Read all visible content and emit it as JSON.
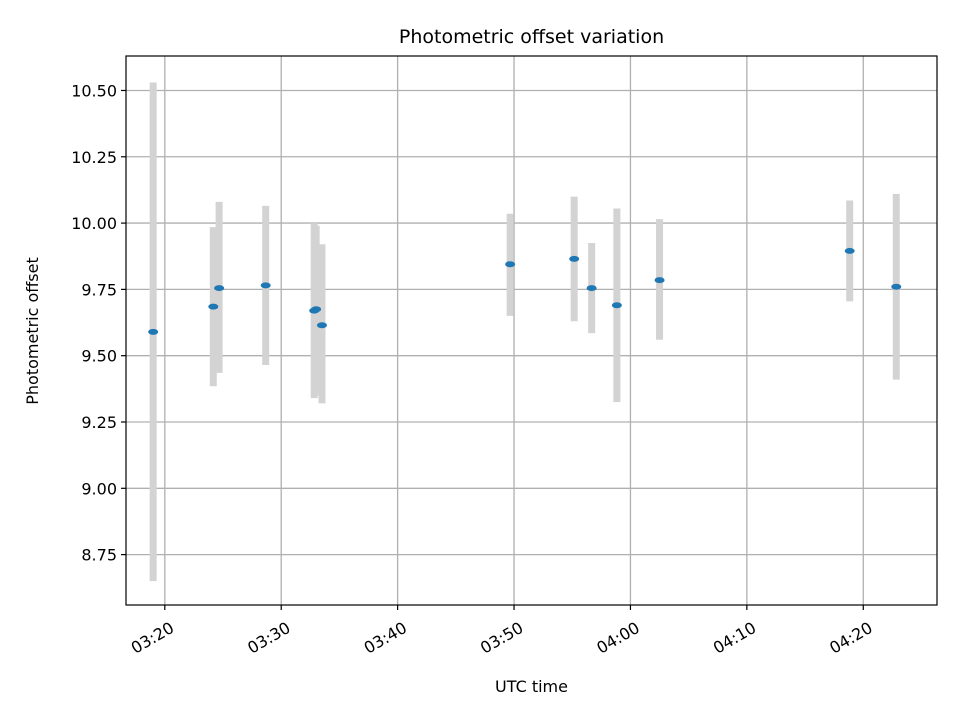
{
  "chart_data": {
    "type": "scatter",
    "title": "Photometric offset variation",
    "xlabel": "UTC time",
    "ylabel": "Photometric offset",
    "x_ticks": [
      "03:20",
      "03:30",
      "03:40",
      "03:50",
      "04:00",
      "04:10",
      "04:20"
    ],
    "y_ticks": [
      "8.75",
      "9.00",
      "9.25",
      "9.50",
      "9.75",
      "10.00",
      "10.25",
      "10.50"
    ],
    "xlim": [
      "03:16:40",
      "04:26:20"
    ],
    "ylim": [
      8.56,
      10.63
    ],
    "grid": true,
    "colors": {
      "marker": "#1f77b4",
      "errorbar": "#d3d3d3",
      "grid": "#b0b0b0"
    },
    "points": [
      {
        "x": "03:19:00",
        "y": 9.59,
        "lo": 8.65,
        "hi": 10.53
      },
      {
        "x": "03:24:10",
        "y": 9.685,
        "lo": 9.385,
        "hi": 9.985
      },
      {
        "x": "03:24:40",
        "y": 9.755,
        "lo": 9.435,
        "hi": 10.08
      },
      {
        "x": "03:28:40",
        "y": 9.765,
        "lo": 9.465,
        "hi": 10.065
      },
      {
        "x": "03:32:50",
        "y": 9.67,
        "lo": 9.34,
        "hi": 10.0
      },
      {
        "x": "03:33:00",
        "y": 9.675,
        "lo": 9.35,
        "hi": 9.99
      },
      {
        "x": "03:33:30",
        "y": 9.615,
        "lo": 9.32,
        "hi": 9.92
      },
      {
        "x": "03:49:40",
        "y": 9.845,
        "lo": 9.65,
        "hi": 10.035
      },
      {
        "x": "03:55:10",
        "y": 9.865,
        "lo": 9.63,
        "hi": 10.1
      },
      {
        "x": "03:56:40",
        "y": 9.755,
        "lo": 9.585,
        "hi": 9.925
      },
      {
        "x": "03:58:50",
        "y": 9.69,
        "lo": 9.325,
        "hi": 10.055
      },
      {
        "x": "04:02:30",
        "y": 9.785,
        "lo": 9.56,
        "hi": 10.015
      },
      {
        "x": "04:18:50",
        "y": 9.895,
        "lo": 9.705,
        "hi": 10.085
      },
      {
        "x": "04:22:50",
        "y": 9.76,
        "lo": 9.41,
        "hi": 10.11
      }
    ]
  }
}
